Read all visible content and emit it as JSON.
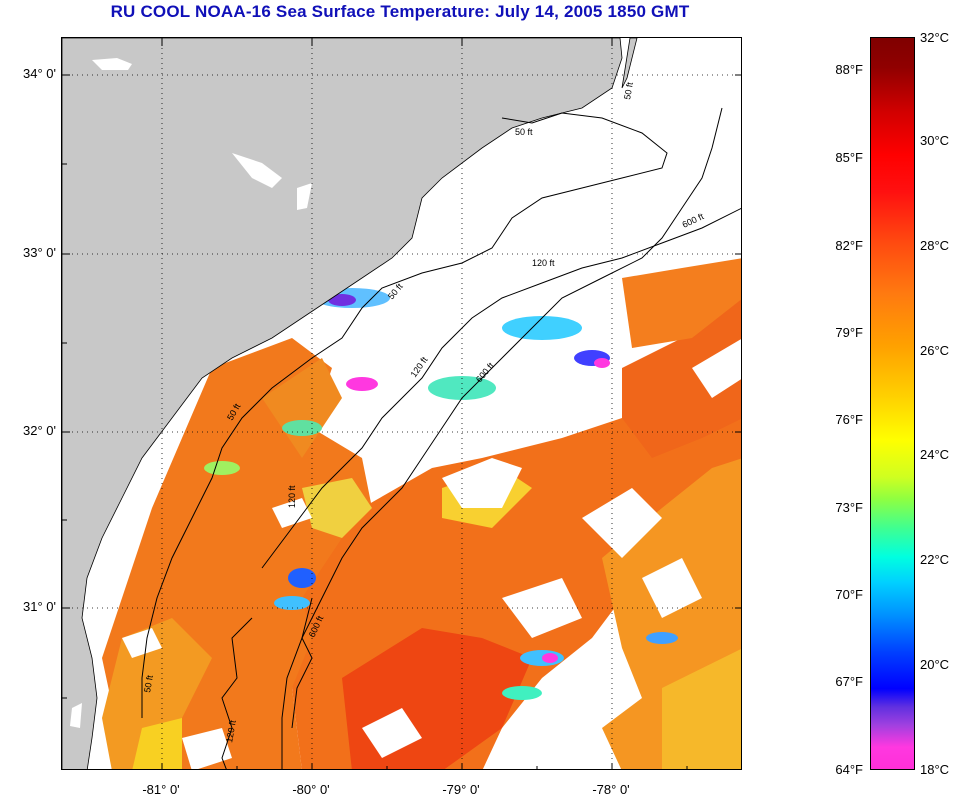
{
  "title": "RU COOL  NOAA-16  Sea Surface Temperature:  July 14, 2005 1850 GMT",
  "axes": {
    "latitude_labels": [
      "34° 0'",
      "33° 0'",
      "32° 0'",
      "31° 0'"
    ],
    "longitude_labels": [
      "-81° 0'",
      "-80° 0'",
      "-79° 0'",
      "-78° 0'"
    ]
  },
  "contours": {
    "labels": [
      "50 ft",
      "50 ft",
      "120 ft",
      "600 ft",
      "120 ft",
      "600 ft",
      "50 ft",
      "120 ft",
      "600 ft",
      "50 ft",
      "120 ft",
      "50 ft"
    ]
  },
  "colorbar": {
    "fahrenheit_labels": [
      "88°F",
      "85°F",
      "82°F",
      "79°F",
      "76°F",
      "73°F",
      "70°F",
      "67°F",
      "64°F"
    ],
    "celsius_labels": [
      "32°C",
      "30°C",
      "28°C",
      "26°C",
      "24°C",
      "22°C",
      "20°C",
      "18°C"
    ],
    "range_celsius": [
      18,
      32
    ]
  },
  "colors": {
    "land": "#c8c8c8",
    "cloud": "#ffffff",
    "title": "#1010b8",
    "warm": "#f27a1a",
    "hot": "#ee3a10"
  }
}
